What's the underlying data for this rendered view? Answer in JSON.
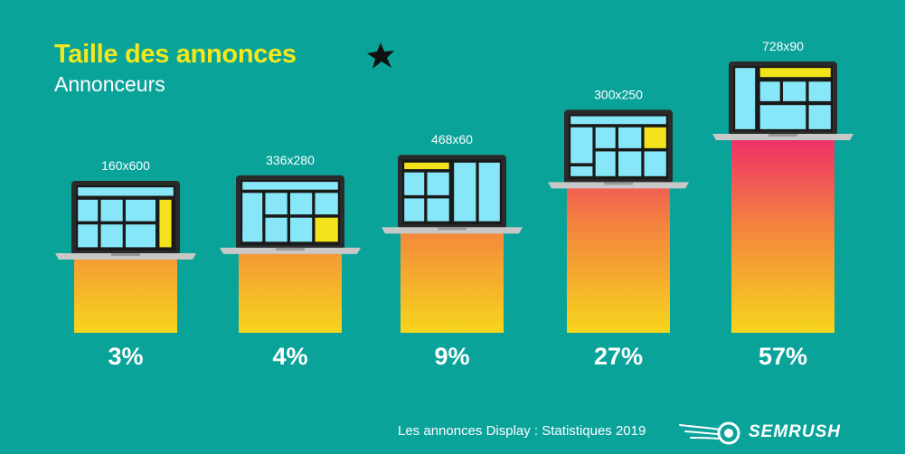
{
  "chart_data": {
    "type": "bar",
    "title": "Taille des annonces",
    "subtitle": "Annonceurs",
    "categories": [
      "160x600",
      "336x280",
      "468x60",
      "300x250",
      "728x90"
    ],
    "values": [
      3,
      4,
      9,
      27,
      57
    ],
    "value_labels": [
      "3%",
      "4%",
      "9%",
      "27%",
      "57%"
    ],
    "unit": "%",
    "ylim": [
      0,
      60
    ],
    "grid": false,
    "legend": "none",
    "bar_gradient_bottom": "#f7d51c",
    "bar_gradient_top": "#ee2c6b"
  },
  "footer": {
    "source": "Les annonces Display : Statistiques 2019",
    "brand": "SEMRUSH"
  },
  "colors": {
    "background": "#0aa39a",
    "title": "#f4e81c",
    "screen": "#87e7f8",
    "ad_highlight": "#f3e31a",
    "laptop_frame": "#2a2a2a",
    "laptop_base": "#c8c8c8"
  },
  "icons": {
    "star": "star-icon",
    "logo": "semrush-fireball-icon"
  }
}
